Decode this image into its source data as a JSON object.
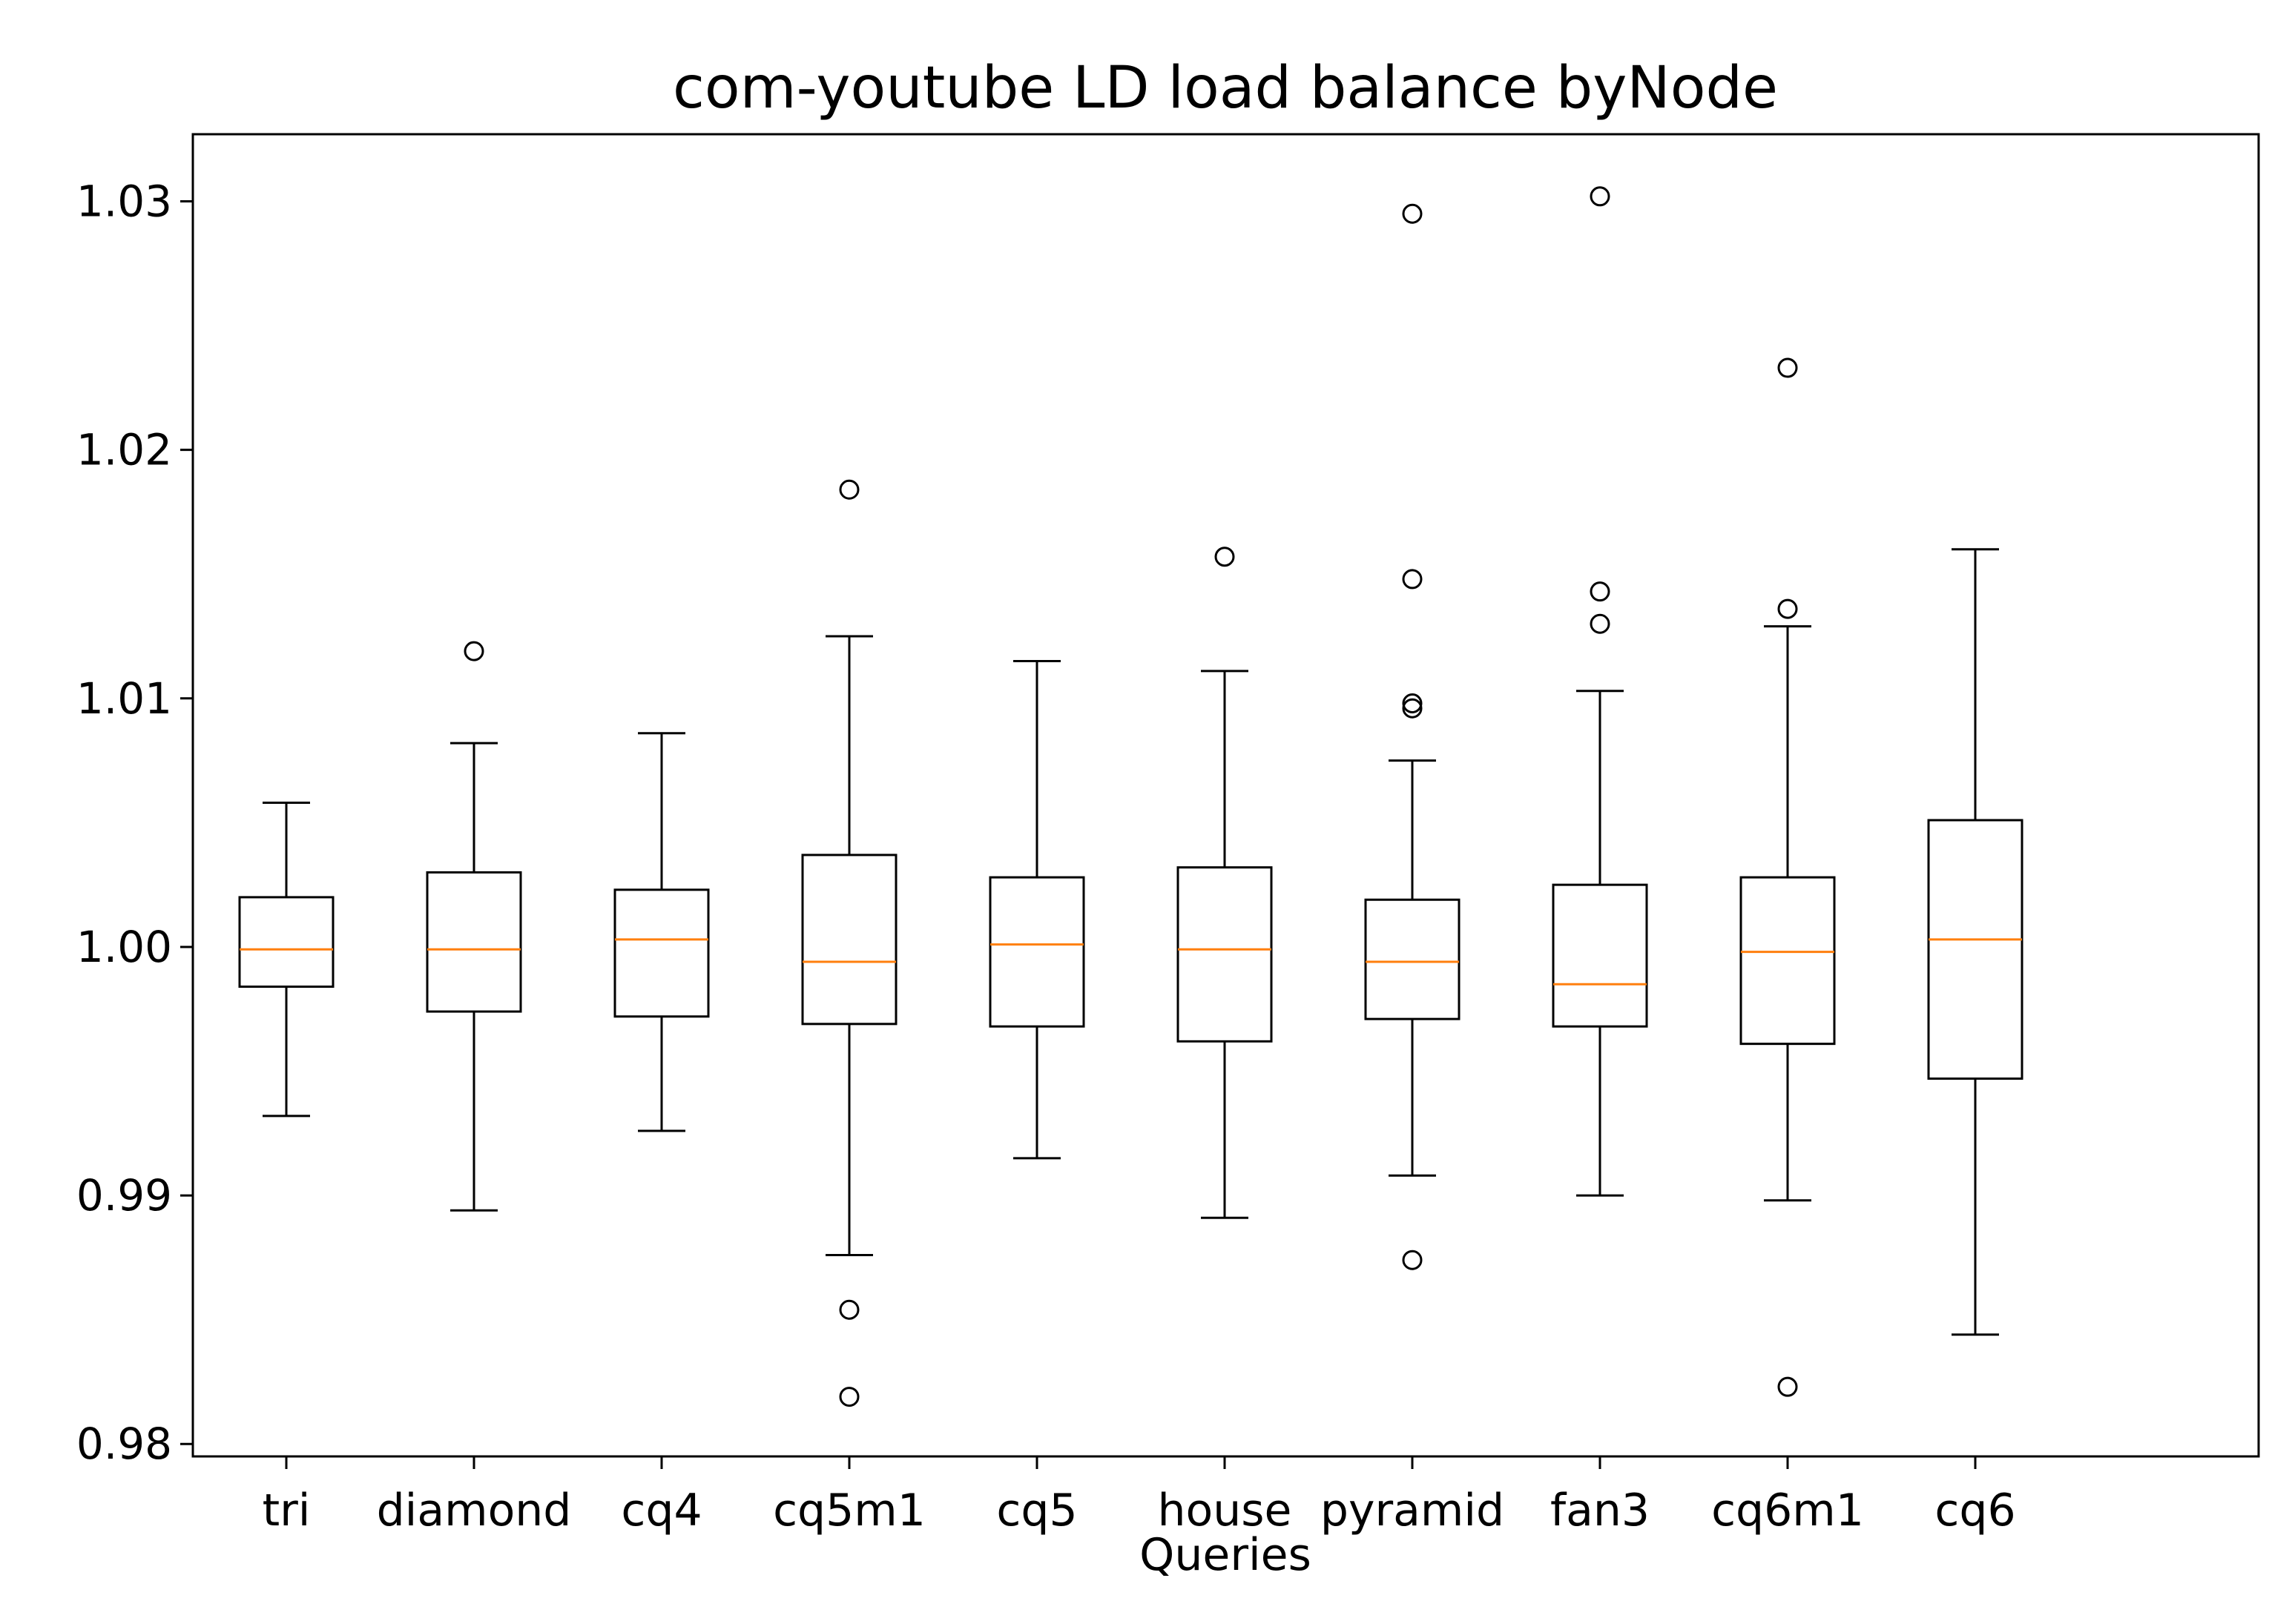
{
  "chart_data": {
    "type": "box",
    "title": "com-youtube LD load balance byNode",
    "xlabel": "Queries",
    "ylabel": "",
    "ylim": [
      0.9795,
      1.0327
    ],
    "yticks": [
      "0.98",
      "0.99",
      "1.00",
      "1.01",
      "1.02",
      "1.03"
    ],
    "grid": false,
    "legend": "none",
    "colors": {
      "box": "#000000",
      "median": "#ff7f0e",
      "outlier": "#000000"
    },
    "categories": [
      "tri",
      "diamond",
      "cq4",
      "cq5m1",
      "cq5",
      "house",
      "pyramid",
      "fan3",
      "cq6m1",
      "cq6"
    ],
    "boxes": [
      {
        "label": "tri",
        "whisker_low": 0.9932,
        "q1": 0.9984,
        "median": 0.9999,
        "q3": 1.002,
        "whisker_high": 1.0058,
        "outliers": []
      },
      {
        "label": "diamond",
        "whisker_low": 0.9894,
        "q1": 0.9974,
        "median": 0.9999,
        "q3": 1.003,
        "whisker_high": 1.0082,
        "outliers": [
          1.0119
        ]
      },
      {
        "label": "cq4",
        "whisker_low": 0.9926,
        "q1": 0.9972,
        "median": 1.0003,
        "q3": 1.0023,
        "whisker_high": 1.0086,
        "outliers": []
      },
      {
        "label": "cq5m1",
        "whisker_low": 0.9876,
        "q1": 0.9969,
        "median": 0.9994,
        "q3": 1.0037,
        "whisker_high": 1.0125,
        "outliers": [
          1.0184,
          0.9854,
          0.9819
        ]
      },
      {
        "label": "cq5",
        "whisker_low": 0.9915,
        "q1": 0.9968,
        "median": 1.0001,
        "q3": 1.0028,
        "whisker_high": 1.0115,
        "outliers": []
      },
      {
        "label": "house",
        "whisker_low": 0.9891,
        "q1": 0.9962,
        "median": 0.9999,
        "q3": 1.0032,
        "whisker_high": 1.0111,
        "outliers": [
          1.0157
        ]
      },
      {
        "label": "pyramid",
        "whisker_low": 0.9908,
        "q1": 0.9971,
        "median": 0.9994,
        "q3": 1.0019,
        "whisker_high": 1.0075,
        "outliers": [
          1.0295,
          1.0148,
          1.0098,
          1.0096,
          0.9874
        ]
      },
      {
        "label": "fan3",
        "whisker_low": 0.99,
        "q1": 0.9968,
        "median": 0.9985,
        "q3": 1.0025,
        "whisker_high": 1.0103,
        "outliers": [
          1.0302,
          1.0143,
          1.013
        ]
      },
      {
        "label": "cq6m1",
        "whisker_low": 0.9898,
        "q1": 0.9961,
        "median": 0.9998,
        "q3": 1.0028,
        "whisker_high": 1.0129,
        "outliers": [
          1.0233,
          1.0136,
          0.9823
        ]
      },
      {
        "label": "cq6",
        "whisker_low": 0.9844,
        "q1": 0.9947,
        "median": 1.0003,
        "q3": 1.0051,
        "whisker_high": 1.016,
        "outliers": []
      }
    ]
  }
}
